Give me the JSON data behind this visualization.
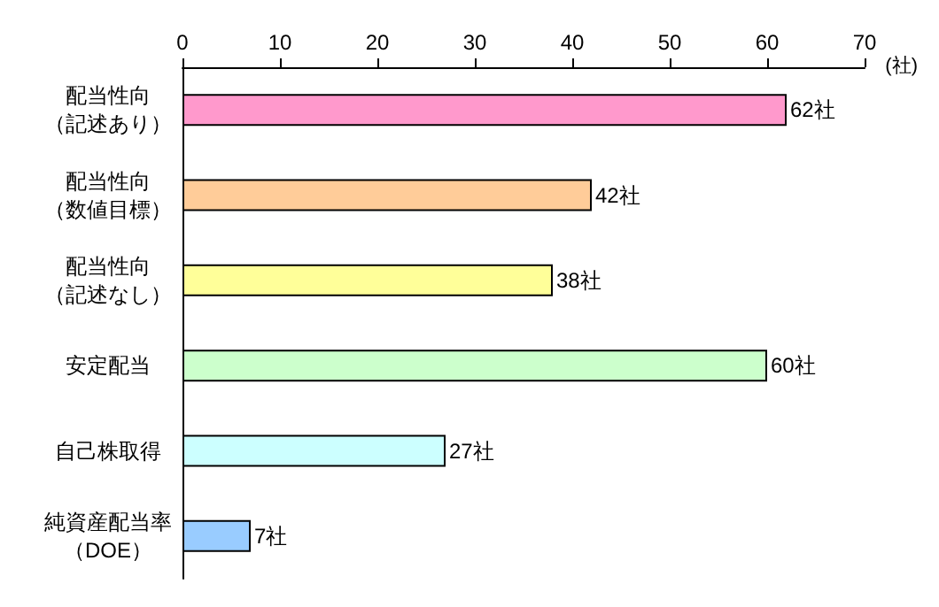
{
  "chart_data": {
    "type": "bar",
    "orientation": "horizontal",
    "xlabel": "(社)",
    "categories": [
      "配当性向（記述あり）",
      "配当性向（数値目標）",
      "配当性向（記述なし）",
      "安定配当",
      "自己株取得",
      "純資産配当率（DOE）"
    ],
    "values": [
      62,
      42,
      38,
      60,
      27,
      7
    ],
    "colors": [
      "#ff99cc",
      "#ffcc99",
      "#ffff99",
      "#ccffcc",
      "#ccffff",
      "#99ccff"
    ],
    "value_labels": [
      "62社",
      "42社",
      "38社",
      "60社",
      "27社",
      "7社"
    ],
    "xlim": [
      0,
      70
    ],
    "xticks": [
      0,
      10,
      20,
      30,
      40,
      50,
      60,
      70
    ]
  }
}
